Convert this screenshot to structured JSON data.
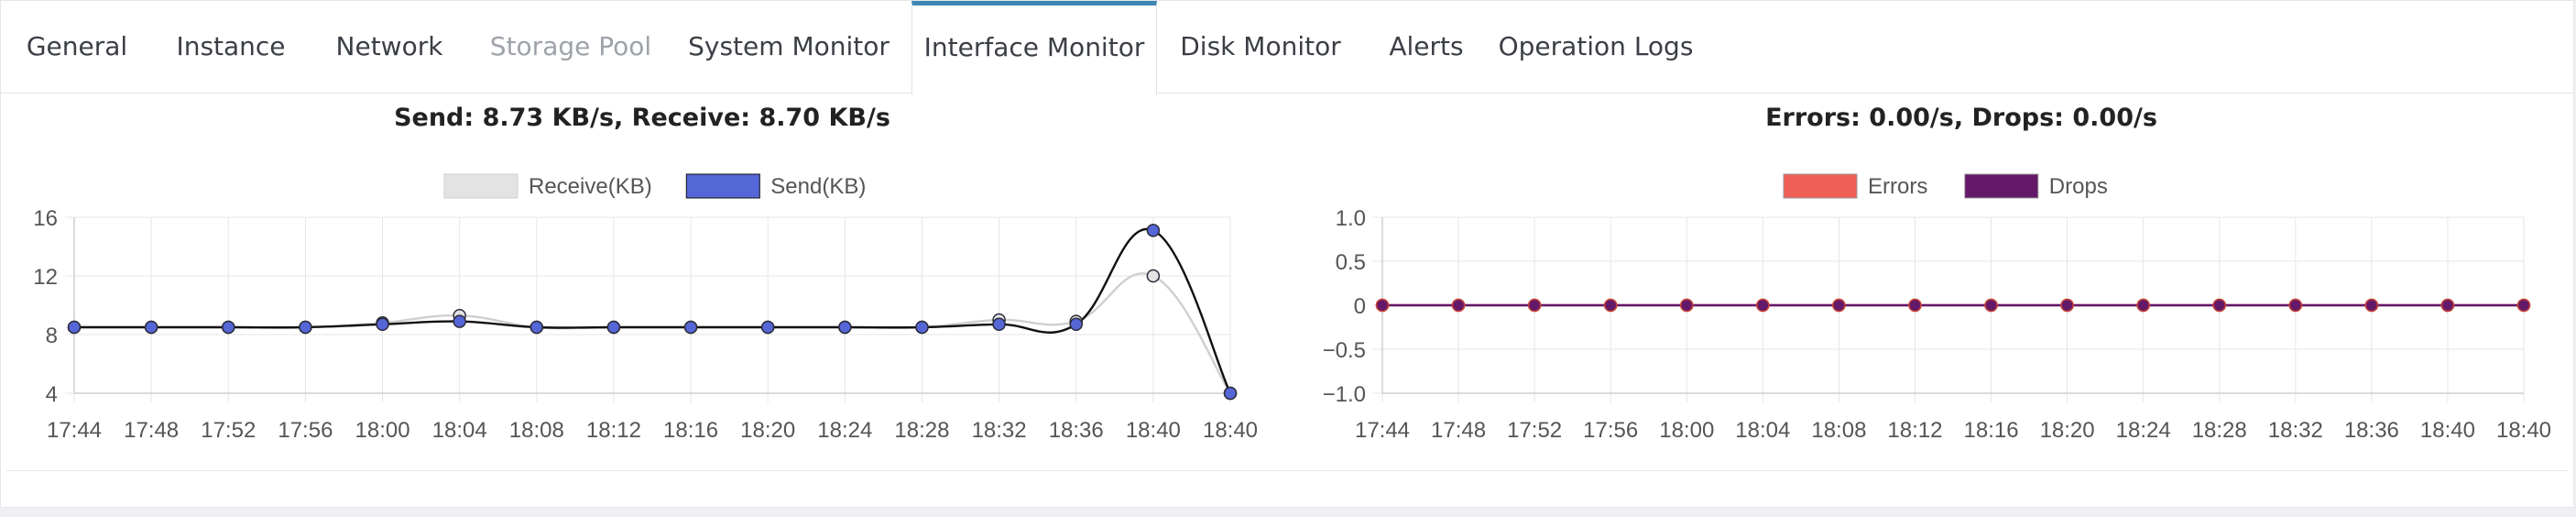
{
  "tabs": [
    {
      "label": "General",
      "state": "normal"
    },
    {
      "label": "Instance",
      "state": "normal"
    },
    {
      "label": "Network",
      "state": "normal"
    },
    {
      "label": "Storage Pool",
      "state": "disabled"
    },
    {
      "label": "System Monitor",
      "state": "normal"
    },
    {
      "label": "Interface Monitor",
      "state": "active"
    },
    {
      "label": "Disk Monitor",
      "state": "normal"
    },
    {
      "label": "Alerts",
      "state": "normal"
    },
    {
      "label": "Operation Logs",
      "state": "normal"
    }
  ],
  "charts": {
    "traffic": {
      "title": "Send: 8.73 KB/s, Receive: 8.70 KB/s"
    },
    "errors": {
      "title": "Errors: 0.00/s, Drops: 0.00/s"
    }
  },
  "chart_data": [
    {
      "type": "line",
      "title": "Send: 8.73 KB/s, Receive: 8.70 KB/s",
      "x": [
        "17:44",
        "17:48",
        "17:52",
        "17:56",
        "18:00",
        "18:04",
        "18:08",
        "18:12",
        "18:16",
        "18:20",
        "18:24",
        "18:28",
        "18:32",
        "18:36",
        "18:40",
        "18:40"
      ],
      "yticks": [
        4,
        8,
        12,
        16
      ],
      "ylim": [
        4,
        16
      ],
      "legend_position": "top",
      "grid": true,
      "series": [
        {
          "name": "Receive(KB)",
          "color": "#e3e3e3",
          "line_color": "#cfcfcf",
          "values": [
            8.5,
            8.5,
            8.5,
            8.5,
            8.8,
            9.3,
            8.5,
            8.5,
            8.5,
            8.5,
            8.5,
            8.5,
            9.0,
            8.9,
            12.0,
            4.0
          ]
        },
        {
          "name": "Send(KB)",
          "color": "#5566d6",
          "line_color": "#111111",
          "values": [
            8.5,
            8.5,
            8.5,
            8.5,
            8.7,
            8.9,
            8.5,
            8.5,
            8.5,
            8.5,
            8.5,
            8.5,
            8.7,
            8.7,
            15.1,
            4.0
          ]
        }
      ]
    },
    {
      "type": "line",
      "title": "Errors: 0.00/s, Drops: 0.00/s",
      "x": [
        "17:44",
        "17:48",
        "17:52",
        "17:56",
        "18:00",
        "18:04",
        "18:08",
        "18:12",
        "18:16",
        "18:20",
        "18:24",
        "18:28",
        "18:32",
        "18:36",
        "18:40",
        "18:40"
      ],
      "yticks": [
        -1.0,
        -0.5,
        0,
        0.5,
        1.0
      ],
      "ytick_labels": [
        "−1.0",
        "−0.5",
        "0",
        "0.5",
        "1.0"
      ],
      "ylim": [
        -1.0,
        1.0
      ],
      "legend_position": "top",
      "grid": true,
      "series": [
        {
          "name": "Errors",
          "color": "#ef5f55",
          "values": [
            0,
            0,
            0,
            0,
            0,
            0,
            0,
            0,
            0,
            0,
            0,
            0,
            0,
            0,
            0,
            0
          ]
        },
        {
          "name": "Drops",
          "color": "#631869",
          "values": [
            0,
            0,
            0,
            0,
            0,
            0,
            0,
            0,
            0,
            0,
            0,
            0,
            0,
            0,
            0,
            0
          ]
        }
      ]
    }
  ]
}
